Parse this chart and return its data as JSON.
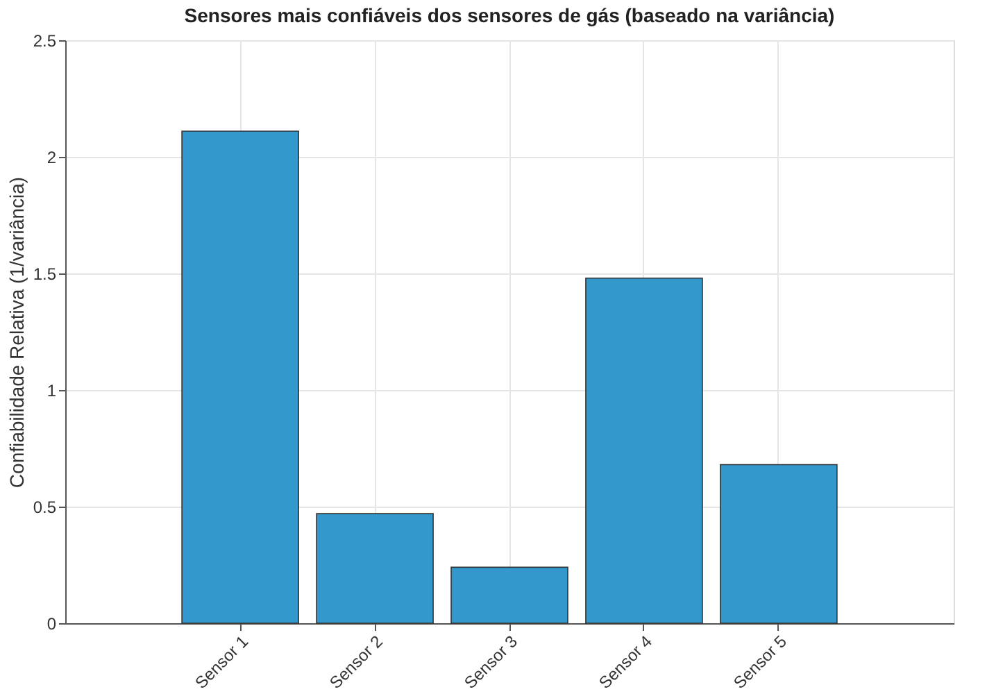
{
  "chart_data": {
    "type": "bar",
    "title": "Sensores mais confiáveis dos sensores de gás (baseado na variância)",
    "ylabel": "Confiabilidade Relativa (1/variância)",
    "categories": [
      "Sensor 1",
      "Sensor 2",
      "Sensor 3",
      "Sensor 4",
      "Sensor 5"
    ],
    "values": [
      2.11,
      0.47,
      0.24,
      1.48,
      0.68
    ],
    "color": "#3399cc",
    "ylim": [
      0,
      2.5
    ],
    "yticks": [
      0,
      0.5,
      1,
      1.5,
      2,
      2.5
    ],
    "grid": true
  }
}
